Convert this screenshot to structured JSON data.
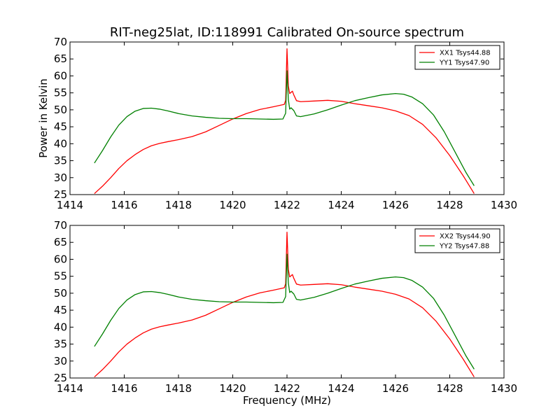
{
  "figure_title": "RIT-neg25lat, ID:118991 Calibrated On-source spectrum",
  "xlabel": "Frequency (MHz)",
  "ylabel": "Power in Kelvin",
  "chart_data": [
    {
      "type": "line",
      "xlim": [
        1414,
        1430
      ],
      "ylim": [
        25,
        70
      ],
      "xticks": [
        1414,
        1416,
        1418,
        1420,
        1422,
        1424,
        1426,
        1428,
        1430
      ],
      "yticks": [
        25,
        30,
        35,
        40,
        45,
        50,
        55,
        60,
        65,
        70
      ],
      "legend_position": "top-right",
      "grid": false,
      "series": [
        {
          "name": "XX1 Tsys44.88",
          "color": "#ff0000",
          "points": [
            [
              1414.9,
              25.3
            ],
            [
              1415.2,
              27.5
            ],
            [
              1415.5,
              30
            ],
            [
              1415.8,
              32.7
            ],
            [
              1416.1,
              35
            ],
            [
              1416.4,
              36.8
            ],
            [
              1416.7,
              38.3
            ],
            [
              1417.0,
              39.4
            ],
            [
              1417.3,
              40.1
            ],
            [
              1417.6,
              40.6
            ],
            [
              1418.0,
              41.2
            ],
            [
              1418.5,
              42.1
            ],
            [
              1419.0,
              43.5
            ],
            [
              1419.5,
              45.4
            ],
            [
              1420.0,
              47.3
            ],
            [
              1420.5,
              48.9
            ],
            [
              1421.0,
              50.1
            ],
            [
              1421.5,
              50.9
            ],
            [
              1421.9,
              51.6
            ],
            [
              1421.95,
              52.8
            ],
            [
              1422.0,
              68
            ],
            [
              1422.05,
              57
            ],
            [
              1422.1,
              54.8
            ],
            [
              1422.2,
              55.5
            ],
            [
              1422.25,
              54.4
            ],
            [
              1422.35,
              52.7
            ],
            [
              1422.5,
              52.4
            ],
            [
              1423.0,
              52.6
            ],
            [
              1423.5,
              52.8
            ],
            [
              1424.0,
              52.5
            ],
            [
              1424.5,
              51.8
            ],
            [
              1425.0,
              51.2
            ],
            [
              1425.5,
              50.6
            ],
            [
              1426.0,
              49.7
            ],
            [
              1426.5,
              48.3
            ],
            [
              1427.0,
              45.7
            ],
            [
              1427.5,
              41.7
            ],
            [
              1428.0,
              36.5
            ],
            [
              1428.5,
              30.5
            ],
            [
              1428.9,
              25.3
            ]
          ]
        },
        {
          "name": "YY1 Tsys47.90",
          "color": "#008000",
          "points": [
            [
              1414.9,
              34.3
            ],
            [
              1415.2,
              38
            ],
            [
              1415.5,
              42
            ],
            [
              1415.8,
              45.5
            ],
            [
              1416.1,
              48
            ],
            [
              1416.4,
              49.6
            ],
            [
              1416.7,
              50.4
            ],
            [
              1417.0,
              50.5
            ],
            [
              1417.3,
              50.2
            ],
            [
              1417.6,
              49.7
            ],
            [
              1418.0,
              48.9
            ],
            [
              1418.5,
              48.2
            ],
            [
              1419.0,
              47.8
            ],
            [
              1419.5,
              47.5
            ],
            [
              1420.0,
              47.4
            ],
            [
              1420.5,
              47.4
            ],
            [
              1421.0,
              47.3
            ],
            [
              1421.5,
              47.2
            ],
            [
              1421.85,
              47.3
            ],
            [
              1421.95,
              49
            ],
            [
              1422.0,
              61.5
            ],
            [
              1422.05,
              53
            ],
            [
              1422.1,
              50.2
            ],
            [
              1422.15,
              50.6
            ],
            [
              1422.25,
              49.8
            ],
            [
              1422.35,
              48.2
            ],
            [
              1422.5,
              48
            ],
            [
              1423.0,
              48.8
            ],
            [
              1423.5,
              50
            ],
            [
              1424.0,
              51.4
            ],
            [
              1424.5,
              52.7
            ],
            [
              1425.0,
              53.6
            ],
            [
              1425.5,
              54.4
            ],
            [
              1426.0,
              54.8
            ],
            [
              1426.3,
              54.6
            ],
            [
              1426.6,
              53.8
            ],
            [
              1427.0,
              51.8
            ],
            [
              1427.4,
              48.5
            ],
            [
              1427.8,
              43.5
            ],
            [
              1428.2,
              37.5
            ],
            [
              1428.6,
              31.5
            ],
            [
              1428.9,
              27.6
            ]
          ]
        }
      ]
    },
    {
      "type": "line",
      "xlim": [
        1414,
        1430
      ],
      "ylim": [
        25,
        70
      ],
      "xticks": [
        1414,
        1416,
        1418,
        1420,
        1422,
        1424,
        1426,
        1428,
        1430
      ],
      "yticks": [
        25,
        30,
        35,
        40,
        45,
        50,
        55,
        60,
        65,
        70
      ],
      "legend_position": "top-right",
      "grid": false,
      "series": [
        {
          "name": "XX2 Tsys44.90",
          "color": "#ff0000",
          "points": [
            [
              1414.9,
              25.3
            ],
            [
              1415.2,
              27.5
            ],
            [
              1415.5,
              30
            ],
            [
              1415.8,
              32.7
            ],
            [
              1416.1,
              35
            ],
            [
              1416.4,
              36.8
            ],
            [
              1416.7,
              38.3
            ],
            [
              1417.0,
              39.4
            ],
            [
              1417.3,
              40.1
            ],
            [
              1417.6,
              40.6
            ],
            [
              1418.0,
              41.2
            ],
            [
              1418.5,
              42.1
            ],
            [
              1419.0,
              43.5
            ],
            [
              1419.5,
              45.4
            ],
            [
              1420.0,
              47.3
            ],
            [
              1420.5,
              48.9
            ],
            [
              1421.0,
              50.1
            ],
            [
              1421.5,
              50.9
            ],
            [
              1421.9,
              51.6
            ],
            [
              1421.95,
              52.8
            ],
            [
              1422.0,
              68
            ],
            [
              1422.05,
              57
            ],
            [
              1422.1,
              54.8
            ],
            [
              1422.2,
              55.5
            ],
            [
              1422.25,
              54.4
            ],
            [
              1422.35,
              52.7
            ],
            [
              1422.5,
              52.4
            ],
            [
              1423.0,
              52.6
            ],
            [
              1423.5,
              52.8
            ],
            [
              1424.0,
              52.5
            ],
            [
              1424.5,
              51.8
            ],
            [
              1425.0,
              51.2
            ],
            [
              1425.5,
              50.6
            ],
            [
              1426.0,
              49.7
            ],
            [
              1426.5,
              48.3
            ],
            [
              1427.0,
              45.7
            ],
            [
              1427.5,
              41.7
            ],
            [
              1428.0,
              36.5
            ],
            [
              1428.5,
              30.5
            ],
            [
              1428.9,
              25.3
            ]
          ]
        },
        {
          "name": "YY2 Tsys47.88",
          "color": "#008000",
          "points": [
            [
              1414.9,
              34.3
            ],
            [
              1415.2,
              38
            ],
            [
              1415.5,
              42
            ],
            [
              1415.8,
              45.5
            ],
            [
              1416.1,
              48
            ],
            [
              1416.4,
              49.6
            ],
            [
              1416.7,
              50.4
            ],
            [
              1417.0,
              50.5
            ],
            [
              1417.3,
              50.2
            ],
            [
              1417.6,
              49.7
            ],
            [
              1418.0,
              48.9
            ],
            [
              1418.5,
              48.2
            ],
            [
              1419.0,
              47.8
            ],
            [
              1419.5,
              47.5
            ],
            [
              1420.0,
              47.4
            ],
            [
              1420.5,
              47.4
            ],
            [
              1421.0,
              47.3
            ],
            [
              1421.5,
              47.2
            ],
            [
              1421.85,
              47.3
            ],
            [
              1421.95,
              49
            ],
            [
              1422.0,
              61.5
            ],
            [
              1422.05,
              53
            ],
            [
              1422.1,
              50.2
            ],
            [
              1422.15,
              50.6
            ],
            [
              1422.25,
              49.8
            ],
            [
              1422.35,
              48.2
            ],
            [
              1422.5,
              48
            ],
            [
              1423.0,
              48.8
            ],
            [
              1423.5,
              50
            ],
            [
              1424.0,
              51.4
            ],
            [
              1424.5,
              52.7
            ],
            [
              1425.0,
              53.6
            ],
            [
              1425.5,
              54.4
            ],
            [
              1426.0,
              54.8
            ],
            [
              1426.3,
              54.6
            ],
            [
              1426.6,
              53.8
            ],
            [
              1427.0,
              51.8
            ],
            [
              1427.4,
              48.5
            ],
            [
              1427.8,
              43.5
            ],
            [
              1428.2,
              37.5
            ],
            [
              1428.6,
              31.5
            ],
            [
              1428.9,
              27.6
            ]
          ]
        }
      ]
    }
  ]
}
